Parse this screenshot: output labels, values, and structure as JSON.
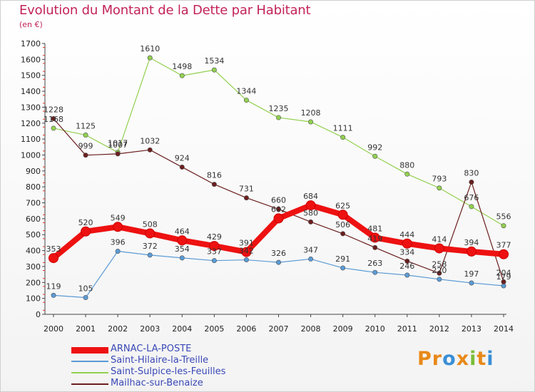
{
  "header": {
    "title": "Evolution du Montant de la Dette par Habitant",
    "subtitle": "(en €)"
  },
  "brand": {
    "logo_text": "Proxiti",
    "logo_colors": [
      "#e8891a",
      "#e8891a",
      "#3a8fd6",
      "#e8891a",
      "#7bbd3a",
      "#e8891a",
      "#3a8fd6"
    ]
  },
  "chart_data": {
    "type": "line",
    "title": "Evolution du Montant de la Dette par Habitant",
    "subtitle": "(en €)",
    "xlabel": "",
    "ylabel": "",
    "ylim": [
      0,
      1700
    ],
    "yticks": [
      0,
      100,
      200,
      300,
      400,
      500,
      600,
      700,
      800,
      900,
      1000,
      1100,
      1200,
      1300,
      1400,
      1500,
      1600,
      1700
    ],
    "grid": false,
    "legend_position": "bottom-left",
    "x": [
      "2000",
      "2001",
      "2002",
      "2003",
      "2004",
      "2005",
      "2006",
      "2007",
      "2008",
      "2009",
      "2010",
      "2011",
      "2012",
      "2013",
      "2014"
    ],
    "series": [
      {
        "name": "ARNAC-LA-POSTE",
        "color": "#ee1111",
        "emphasis": true,
        "values": [
          353,
          520,
          549,
          508,
          464,
          429,
          391,
          602,
          684,
          625,
          481,
          444,
          414,
          394,
          377
        ],
        "labels": [
          "353",
          "520",
          "549",
          "508",
          "464",
          "429",
          "391",
          "602",
          "684",
          "625",
          "481",
          "444",
          "414",
          "394",
          "377"
        ]
      },
      {
        "name": "Saint-Hilaire-la-Treille",
        "color": "#5b9bd5",
        "emphasis": false,
        "values": [
          119,
          105,
          396,
          372,
          354,
          337,
          342,
          326,
          347,
          291,
          263,
          246,
          220,
          197,
          179
        ],
        "labels": [
          "119",
          "105",
          "396",
          "372",
          "354",
          "337",
          "342",
          "326",
          "347",
          "291",
          "263",
          "246",
          "220",
          "197",
          "179"
        ]
      },
      {
        "name": "Saint-Sulpice-les-Feuilles",
        "color": "#92d050",
        "emphasis": false,
        "values": [
          1168,
          1125,
          1017,
          1610,
          1498,
          1534,
          1344,
          1235,
          1208,
          1111,
          992,
          880,
          793,
          676,
          556
        ],
        "labels": [
          "1168",
          "1125",
          "1017",
          "1610",
          "1498",
          "1534",
          "1344",
          "1235",
          "1208",
          "1111",
          "992",
          "880",
          "793",
          "676",
          "556"
        ]
      },
      {
        "name": "Mailhac-sur-Benaize",
        "color": "#6b1e1e",
        "emphasis": false,
        "values": [
          1228,
          999,
          1007,
          1032,
          924,
          816,
          731,
          660,
          580,
          506,
          419,
          334,
          258,
          830,
          204
        ],
        "labels": [
          "1228",
          "999",
          "1007",
          "1032",
          "924",
          "816",
          "731",
          "660",
          "580",
          "506",
          "419",
          "334",
          "258",
          "830",
          "204"
        ]
      }
    ]
  }
}
